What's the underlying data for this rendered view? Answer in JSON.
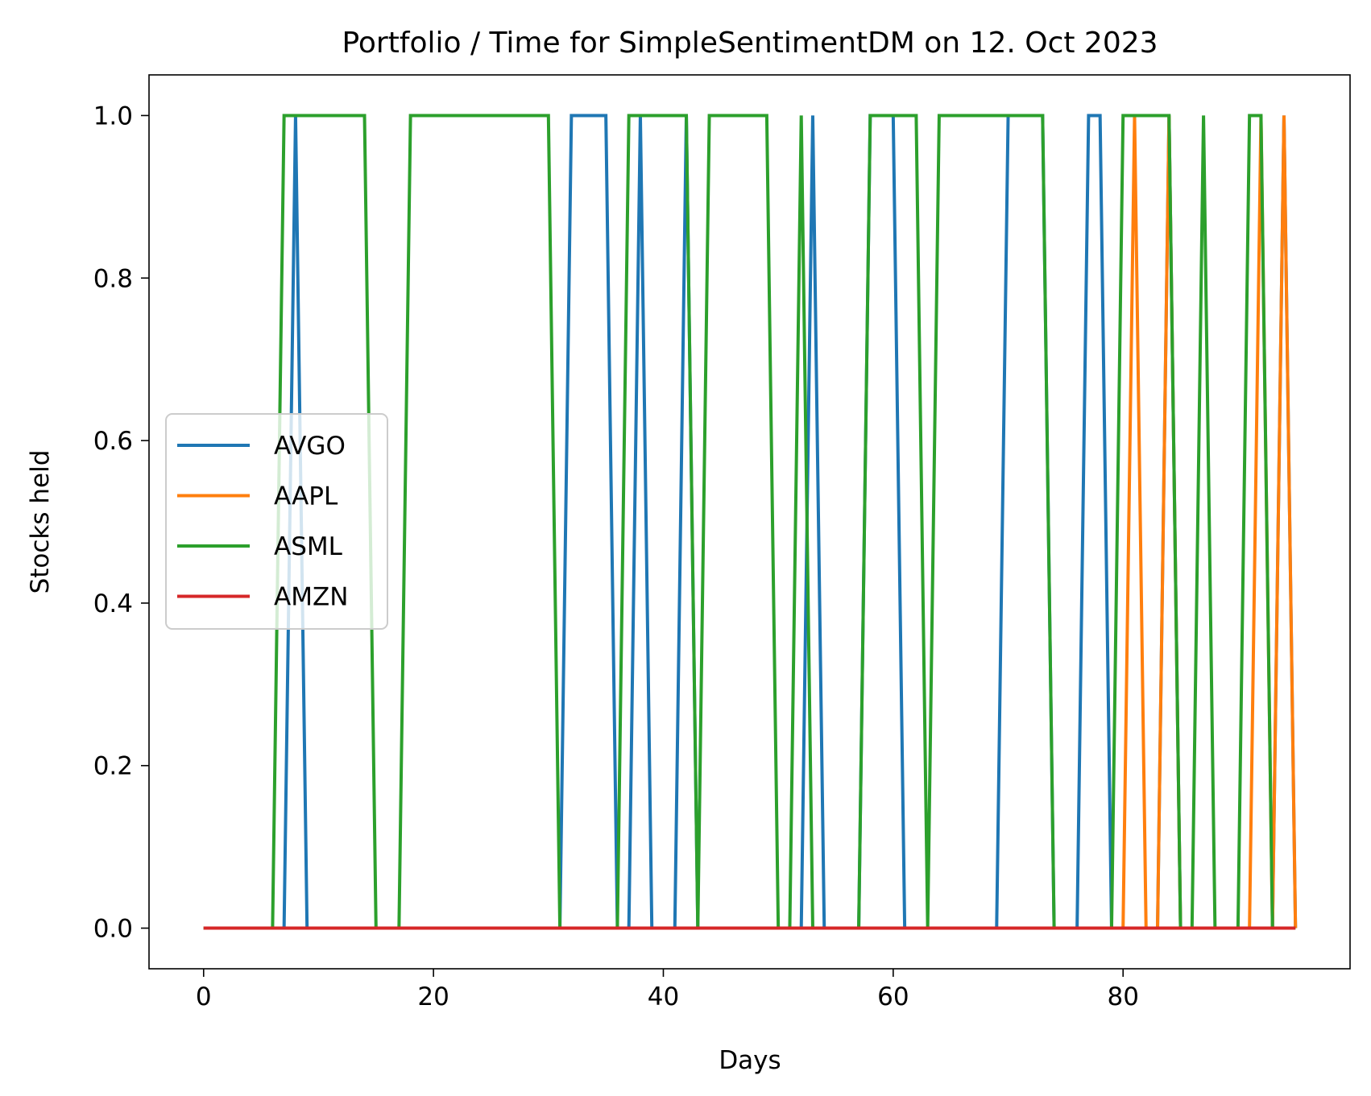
{
  "chart_data": {
    "type": "line",
    "title": "Portfolio / Time for SimpleSentimentDM on 12. Oct 2023",
    "xlabel": "Days",
    "ylabel": "Stocks held",
    "xlim": [
      -4.75,
      99.75
    ],
    "ylim": [
      -0.05,
      1.05
    ],
    "xticks": [
      0,
      20,
      40,
      60,
      80
    ],
    "yticks": [
      0.0,
      0.2,
      0.4,
      0.6,
      0.8,
      1.0
    ],
    "xtick_labels": [
      "0",
      "20",
      "40",
      "60",
      "80"
    ],
    "ytick_labels": [
      "0.0",
      "0.2",
      "0.4",
      "0.6",
      "0.8",
      "1.0"
    ],
    "grid": false,
    "legend_position": "center-left",
    "x": [
      0,
      1,
      2,
      3,
      4,
      5,
      6,
      7,
      8,
      9,
      10,
      11,
      12,
      13,
      14,
      15,
      16,
      17,
      18,
      19,
      20,
      21,
      22,
      23,
      24,
      25,
      26,
      27,
      28,
      29,
      30,
      31,
      32,
      33,
      34,
      35,
      36,
      37,
      38,
      39,
      40,
      41,
      42,
      43,
      44,
      45,
      46,
      47,
      48,
      49,
      50,
      51,
      52,
      53,
      54,
      55,
      56,
      57,
      58,
      59,
      60,
      61,
      62,
      63,
      64,
      65,
      66,
      67,
      68,
      69,
      70,
      71,
      72,
      73,
      74,
      75,
      76,
      77,
      78,
      79,
      80,
      81,
      82,
      83,
      84,
      85,
      86,
      87,
      88,
      89,
      90,
      91,
      92,
      93,
      94,
      95
    ],
    "series": [
      {
        "name": "AVGO",
        "color": "#1f77b4",
        "values": [
          0,
          0,
          0,
          0,
          0,
          0,
          0,
          0,
          1,
          0,
          0,
          0,
          0,
          0,
          0,
          0,
          0,
          0,
          0,
          0,
          0,
          0,
          0,
          0,
          0,
          0,
          0,
          0,
          0,
          0,
          0,
          0,
          1,
          1,
          1,
          1,
          0,
          0,
          1,
          0,
          0,
          0,
          1,
          0,
          0,
          0,
          0,
          0,
          0,
          0,
          0,
          0,
          0,
          1,
          0,
          0,
          0,
          0,
          1,
          1,
          1,
          0,
          0,
          0,
          0,
          0,
          0,
          0,
          0,
          0,
          1,
          1,
          1,
          1,
          0,
          0,
          0,
          1,
          1,
          0,
          0,
          0,
          0,
          0,
          1,
          0,
          0,
          0,
          0,
          0,
          0,
          0,
          0,
          0,
          1,
          0
        ]
      },
      {
        "name": "AAPL",
        "color": "#ff7f0e",
        "values": [
          0,
          0,
          0,
          0,
          0,
          0,
          0,
          0,
          0,
          0,
          0,
          0,
          0,
          0,
          0,
          0,
          0,
          0,
          0,
          0,
          0,
          0,
          0,
          0,
          0,
          0,
          0,
          0,
          0,
          0,
          0,
          0,
          0,
          0,
          0,
          0,
          0,
          0,
          0,
          0,
          0,
          0,
          0,
          0,
          0,
          0,
          0,
          0,
          0,
          0,
          0,
          0,
          0,
          0,
          0,
          0,
          0,
          0,
          0,
          0,
          0,
          0,
          0,
          0,
          0,
          0,
          0,
          0,
          0,
          0,
          0,
          0,
          0,
          0,
          0,
          0,
          0,
          0,
          0,
          0,
          0,
          1,
          0,
          0,
          1,
          0,
          0,
          0,
          0,
          0,
          0,
          0,
          1,
          0,
          1,
          0
        ]
      },
      {
        "name": "ASML",
        "color": "#2ca02c",
        "values": [
          0,
          0,
          0,
          0,
          0,
          0,
          0,
          1,
          1,
          1,
          1,
          1,
          1,
          1,
          1,
          0,
          0,
          0,
          1,
          1,
          1,
          1,
          1,
          1,
          1,
          1,
          1,
          1,
          1,
          1,
          1,
          0,
          0,
          0,
          0,
          0,
          0,
          1,
          1,
          1,
          1,
          1,
          1,
          0,
          1,
          1,
          1,
          1,
          1,
          1,
          0,
          0,
          1,
          0,
          0,
          0,
          0,
          0,
          1,
          1,
          1,
          1,
          1,
          0,
          1,
          1,
          1,
          1,
          1,
          1,
          1,
          1,
          1,
          1,
          0,
          0,
          0,
          0,
          0,
          0,
          1,
          1,
          1,
          1,
          1,
          0,
          0,
          1,
          0,
          0,
          0,
          1,
          1,
          0,
          0,
          0
        ]
      },
      {
        "name": "AMZN",
        "color": "#d62728",
        "values": [
          0,
          0,
          0,
          0,
          0,
          0,
          0,
          0,
          0,
          0,
          0,
          0,
          0,
          0,
          0,
          0,
          0,
          0,
          0,
          0,
          0,
          0,
          0,
          0,
          0,
          0,
          0,
          0,
          0,
          0,
          0,
          0,
          0,
          0,
          0,
          0,
          0,
          0,
          0,
          0,
          0,
          0,
          0,
          0,
          0,
          0,
          0,
          0,
          0,
          0,
          0,
          0,
          0,
          0,
          0,
          0,
          0,
          0,
          0,
          0,
          0,
          0,
          0,
          0,
          0,
          0,
          0,
          0,
          0,
          0,
          0,
          0,
          0,
          0,
          0,
          0,
          0,
          0,
          0,
          0,
          0,
          0,
          0,
          0,
          0,
          0,
          0,
          0,
          0,
          0,
          0,
          0,
          0,
          0,
          0,
          0
        ]
      }
    ]
  }
}
